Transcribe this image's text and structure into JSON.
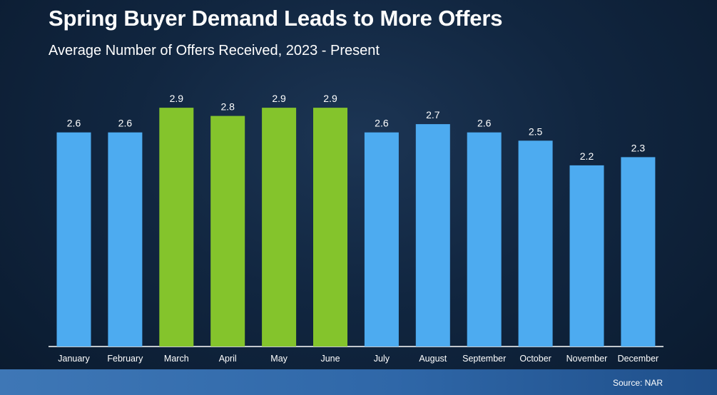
{
  "chart_data": {
    "type": "bar",
    "title": "Spring Buyer Demand Leads to More Offers",
    "subtitle": "Average Number of Offers Received, 2023 - Present",
    "categories": [
      "January",
      "February",
      "March",
      "April",
      "May",
      "June",
      "July",
      "August",
      "September",
      "October",
      "November",
      "December"
    ],
    "values": [
      2.6,
      2.6,
      2.9,
      2.8,
      2.9,
      2.9,
      2.6,
      2.7,
      2.6,
      2.5,
      2.2,
      2.3
    ],
    "highlighted": [
      false,
      false,
      true,
      true,
      true,
      true,
      false,
      false,
      false,
      false,
      false,
      false
    ],
    "ylim": [
      0,
      3.0
    ],
    "xlabel": "",
    "ylabel": "",
    "grid": false,
    "colors": {
      "default_bar": "#4dabf0",
      "highlight_bar": "#84c42c",
      "axis": "#ffffff",
      "label_text": "#ffffff"
    }
  },
  "source": "Source: NAR"
}
